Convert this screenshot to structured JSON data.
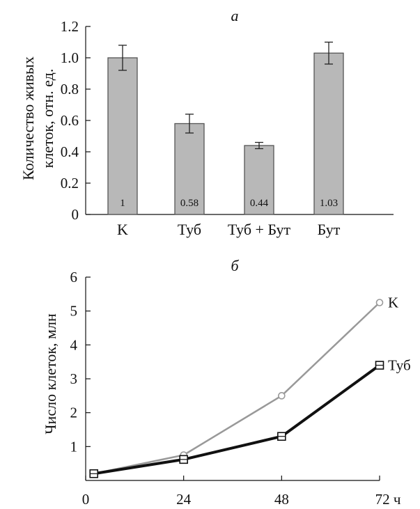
{
  "chart_data": [
    {
      "type": "bar",
      "title": "а",
      "ylabel": "Количество живых клеток, отн. ед.",
      "xlabel": "",
      "ylim": [
        0,
        1.2
      ],
      "yticks": [
        "0",
        "0.2",
        "0.4",
        "0.6",
        "0.8",
        "1.0",
        "1.2"
      ],
      "categories": [
        "K",
        "Туб",
        "Туб + Бут",
        "Бут"
      ],
      "values": [
        1.0,
        0.58,
        0.44,
        1.03
      ],
      "errors": [
        0.08,
        0.06,
        0.02,
        0.07
      ],
      "bar_labels": [
        "1",
        "0.58",
        "0.44",
        "1.03"
      ],
      "bar_color": "#b8b8b8"
    },
    {
      "type": "line",
      "title": "б",
      "ylabel": "Число клеток, млн",
      "xlabel": "",
      "xlim": [
        0,
        72
      ],
      "ylim": [
        0,
        6
      ],
      "xticks": [
        "0",
        "24",
        "48",
        "72 ч"
      ],
      "yticks": [
        "1",
        "2",
        "3",
        "4",
        "5",
        "6"
      ],
      "x": [
        2,
        24,
        48,
        72
      ],
      "series": [
        {
          "name": "K",
          "values": [
            0.2,
            0.75,
            2.5,
            5.25
          ],
          "color": "#999999",
          "marker": "circle"
        },
        {
          "name": "Туб",
          "values": [
            0.2,
            0.62,
            1.3,
            3.4
          ],
          "color": "#111111",
          "marker": "square"
        }
      ]
    }
  ]
}
